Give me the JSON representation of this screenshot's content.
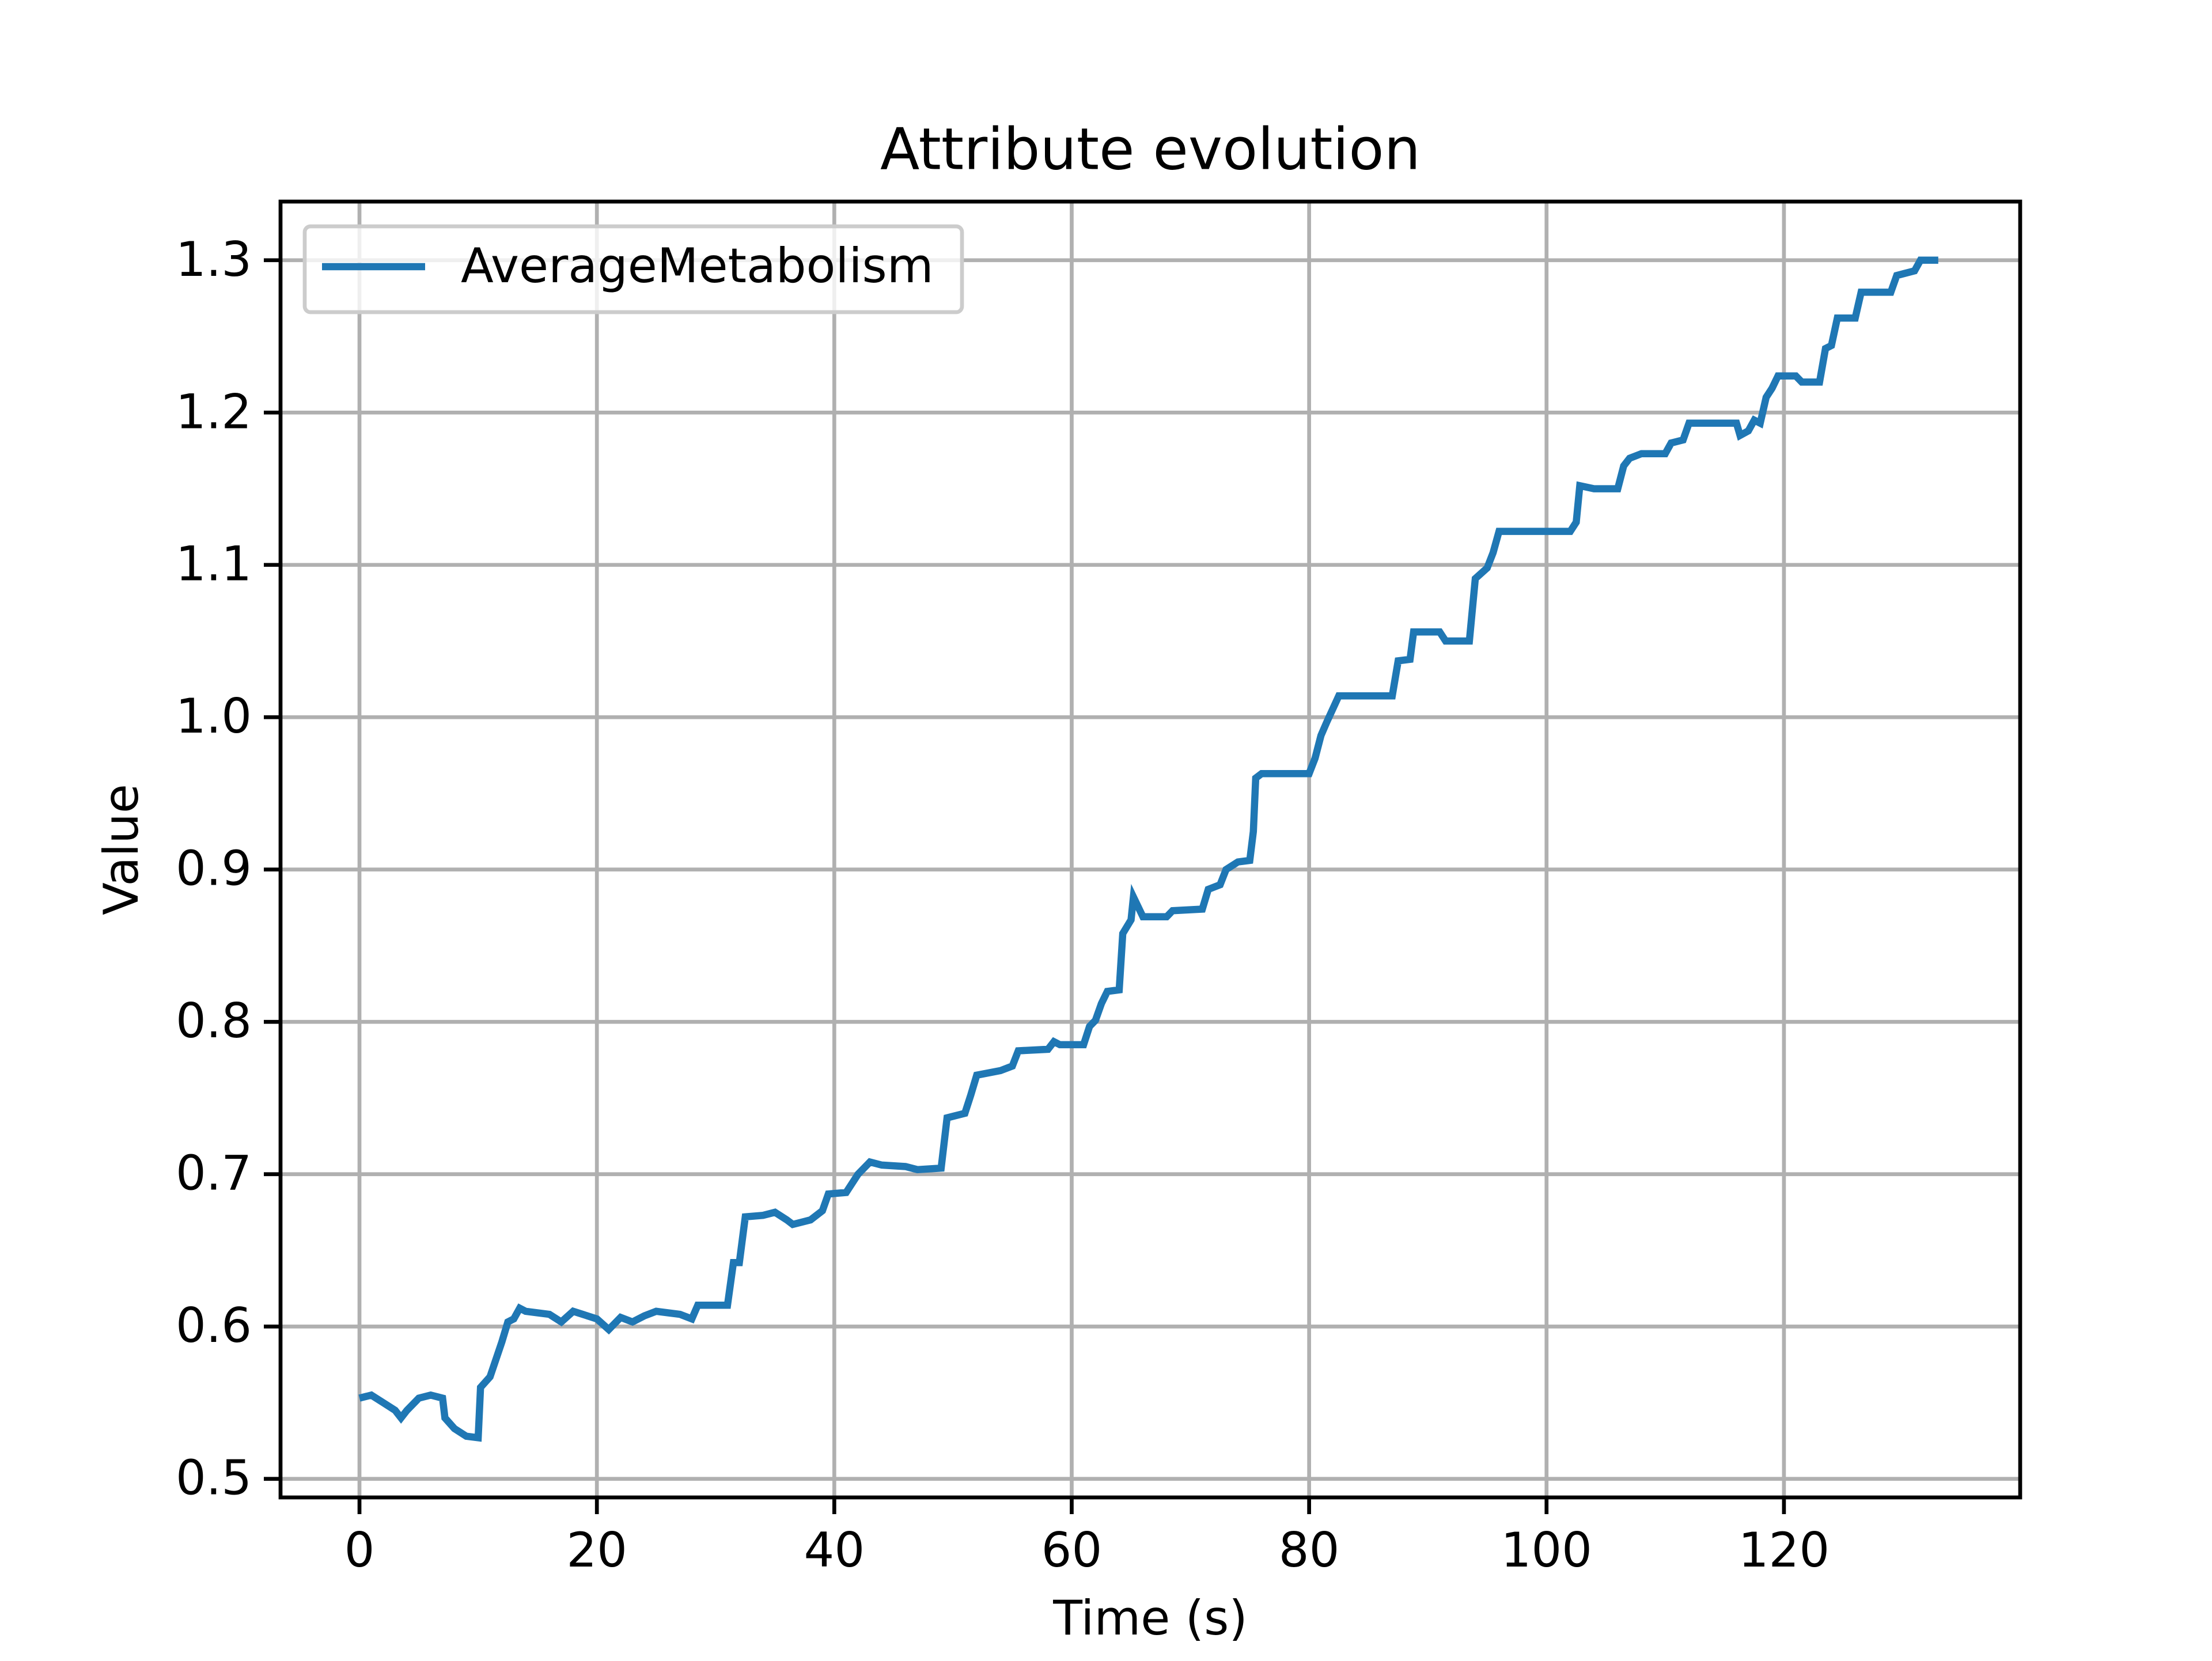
{
  "chart_data": {
    "type": "line",
    "title": "Attribute evolution",
    "x_label": "Time (s)",
    "y_label": "Value",
    "xlim": [
      -6.65,
      139.9
    ],
    "ylim": [
      0.4878,
      1.3385
    ],
    "xticks": [
      0,
      20,
      40,
      60,
      80,
      100,
      120
    ],
    "yticks": [
      0.5,
      0.6,
      0.7,
      0.8,
      0.9,
      {
        "value": 1.0,
        "label": "1.0"
      },
      1.1,
      1.2,
      1.3
    ],
    "grid": true,
    "legend": "upper left",
    "x": [
      0,
      1,
      2,
      3,
      3.5,
      4,
      5,
      6,
      7,
      7.2,
      8,
      9,
      10,
      10.2,
      11,
      12,
      12.5,
      13,
      13.5,
      14,
      16,
      17,
      18,
      20,
      21,
      22,
      23,
      24,
      25,
      27,
      28,
      28.5,
      31,
      31.5,
      32,
      32.5,
      34,
      35,
      36,
      36.5,
      38,
      39,
      39.5,
      41,
      42,
      43,
      44,
      46,
      47,
      49,
      49.5,
      51,
      51.5,
      52,
      54,
      55,
      55.5,
      58,
      58.5,
      59,
      61,
      61.5,
      62,
      62.5,
      63,
      64,
      64.3,
      65,
      65.2,
      66,
      68,
      68.5,
      71,
      71.5,
      72.5,
      73,
      74,
      75,
      75.3,
      75.5,
      76,
      80,
      80.5,
      81,
      81.5,
      82.5,
      87,
      87.5,
      88.5,
      88.8,
      91,
      91.5,
      93.5,
      94,
      95,
      95.5,
      96,
      99,
      102,
      102.5,
      102.8,
      104,
      106,
      106.5,
      107,
      108,
      110,
      110.5,
      111.5,
      112,
      116,
      116.3,
      117,
      117.5,
      118,
      118.5,
      119,
      119.5,
      121,
      121.5,
      123,
      123.5,
      124,
      124.5,
      126,
      126.5,
      129,
      129.5,
      131,
      131.5,
      133
    ],
    "series": [
      {
        "name": "AverageMetabolism",
        "color": "#1f77b4",
        "values": [
          0.553,
          0.555,
          0.55,
          0.545,
          0.54,
          0.545,
          0.553,
          0.555,
          0.553,
          0.54,
          0.533,
          0.528,
          0.527,
          0.56,
          0.567,
          0.59,
          0.603,
          0.605,
          0.612,
          0.61,
          0.608,
          0.603,
          0.61,
          0.605,
          0.598,
          0.606,
          0.603,
          0.607,
          0.61,
          0.608,
          0.605,
          0.614,
          0.614,
          0.642,
          0.642,
          0.672,
          0.673,
          0.675,
          0.67,
          0.667,
          0.67,
          0.676,
          0.687,
          0.688,
          0.7,
          0.708,
          0.706,
          0.705,
          0.703,
          0.704,
          0.737,
          0.74,
          0.752,
          0.765,
          0.768,
          0.771,
          0.781,
          0.782,
          0.787,
          0.785,
          0.785,
          0.797,
          0.801,
          0.812,
          0.82,
          0.821,
          0.858,
          0.867,
          0.882,
          0.869,
          0.869,
          0.873,
          0.874,
          0.887,
          0.89,
          0.9,
          0.905,
          0.906,
          0.925,
          0.96,
          0.963,
          0.963,
          0.973,
          0.988,
          0.997,
          1.014,
          1.014,
          1.037,
          1.038,
          1.056,
          1.056,
          1.05,
          1.05,
          1.091,
          1.098,
          1.108,
          1.122,
          1.122,
          1.122,
          1.128,
          1.152,
          1.15,
          1.15,
          1.165,
          1.17,
          1.173,
          1.173,
          1.18,
          1.182,
          1.193,
          1.193,
          1.185,
          1.188,
          1.195,
          1.193,
          1.21,
          1.216,
          1.224,
          1.224,
          1.22,
          1.22,
          1.242,
          1.244,
          1.262,
          1.262,
          1.279,
          1.279,
          1.29,
          1.293,
          1.3,
          1.3
        ]
      }
    ]
  }
}
